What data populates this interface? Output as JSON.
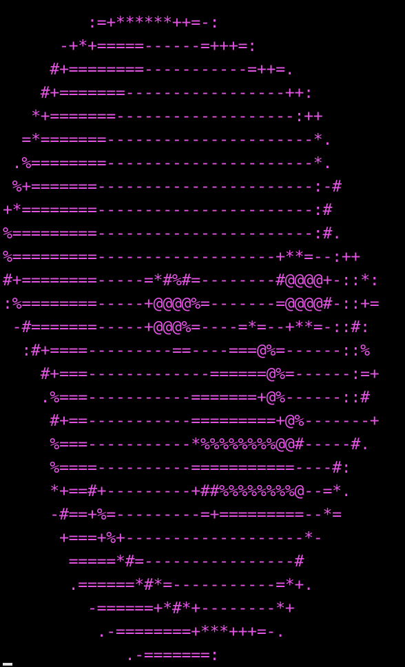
{
  "terminal": {
    "fg_color": "#e455e4",
    "bg_color": "#000000",
    "cursor_color": "#e0e0e0",
    "ascii_lines": [
      "         :=+******++=-:",
      "      -+*+=====------=+++=:",
      "     #+========-----------=++=.",
      "    #+=======-----------------++:",
      "   *+=======-------------------:++",
      "  =*=======----------------------*.",
      " .%========----------------------*.",
      " %+=======-----------------------:-#",
      "+*========-----------------------:#",
      "%=========-----------------------:#.",
      "%=========-------------------+**=--:++",
      "#+========-----=*#%#=--------#@@@@+-::*:",
      ":%========-----+@@@@%=-------=@@@@#-::+=",
      " -#=======-----+@@@%=----=*=--+**=-::#:",
      "  :#+====---------==----===@%=------::%",
      "    #+===-------------======@%=------:=+",
      "    .%===-----------=======+@%------::#",
      "     #+==-----------=========+@%-------+",
      "     %===-----------*%%%%%%%%@@#-----#.",
      "     %====----------===========----#:",
      "     *+==#+---------+##%%%%%%%%@--=*.",
      "     -#==+%=---------=+=========--*=",
      "      +===+%+-------------------*-",
      "       =====*#=----------------#",
      "       .======*#*=-----------=*+.",
      "         -======+*#*+--------*+",
      "          .-========+***+++=-.",
      "             .-=======:"
    ]
  }
}
